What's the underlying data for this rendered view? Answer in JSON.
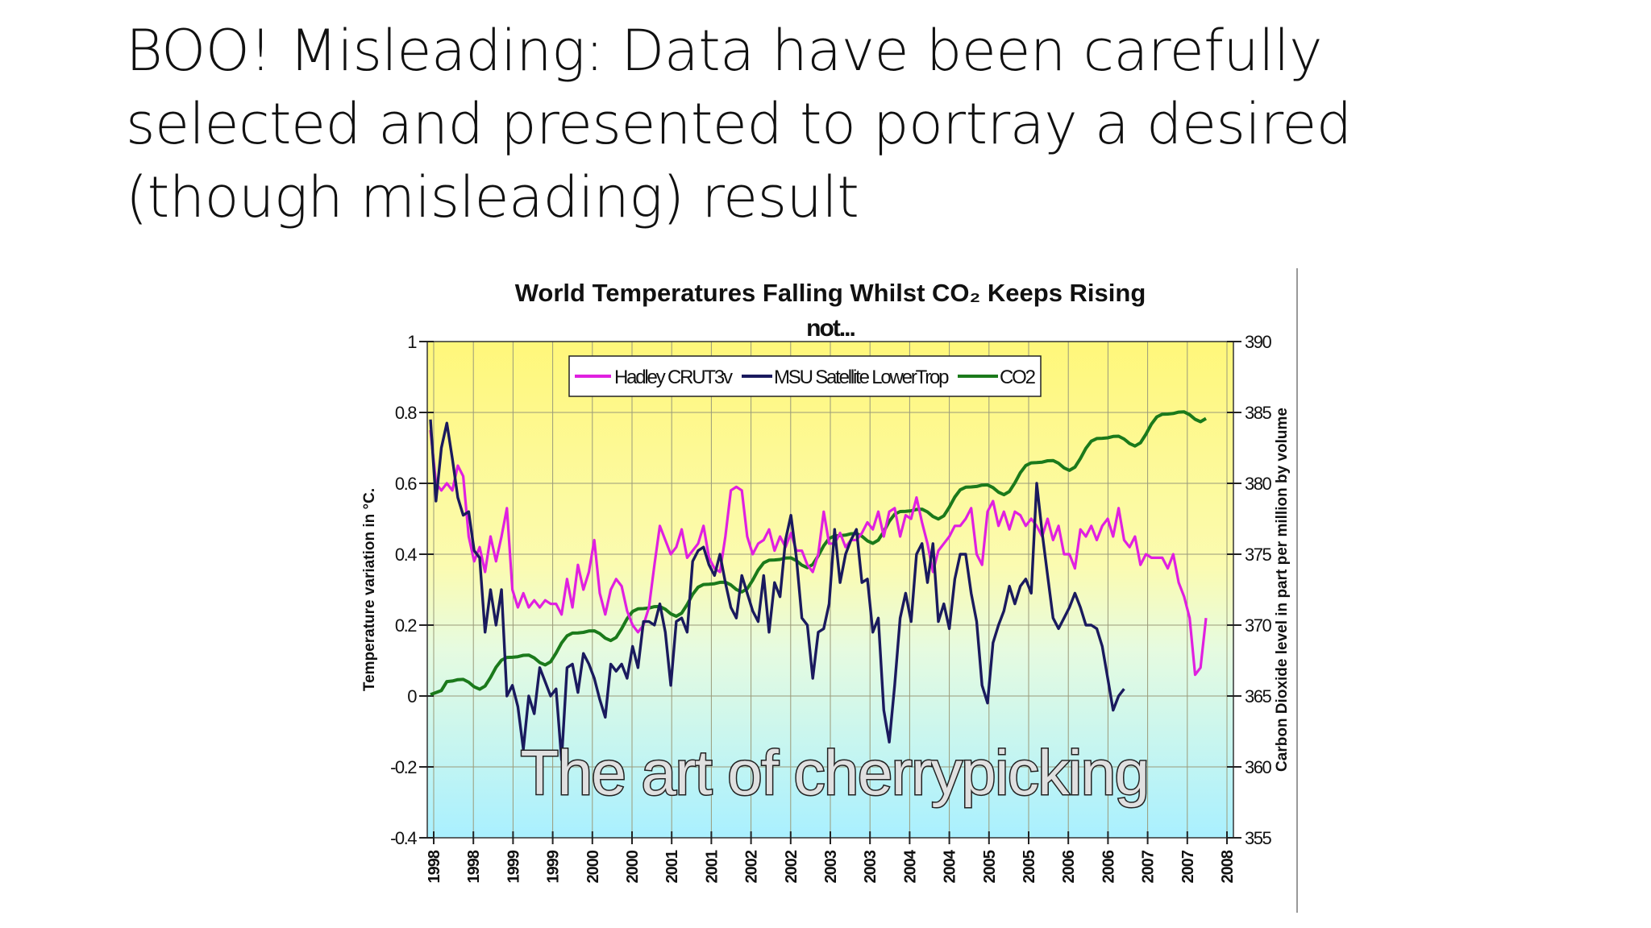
{
  "slide": {
    "title_lines": [
      "BOO! Misleading: Data have been carefully",
      "selected and presented to portray a desired",
      "(though misleading) result"
    ]
  },
  "chart_data": {
    "type": "line",
    "title": "World Temperatures Falling Whilst CO₂ Keeps Rising",
    "subtitle": "not...",
    "overlay_text": "The art of cherrypicking",
    "ylabel": "Temperature variation in °C.",
    "y2label": "Carbon Dioxide level in part per million by volume",
    "ylim": [
      -0.4,
      1
    ],
    "y2lim": [
      355,
      390
    ],
    "yticks": [
      "1",
      "0.8",
      "0.6",
      "0.4",
      "0.2",
      "0",
      "-0.2",
      "-0.4"
    ],
    "y2ticks": [
      "390",
      "385",
      "380",
      "375",
      "370",
      "365",
      "360",
      "355"
    ],
    "xticks": [
      "1998",
      "1998",
      "1999",
      "1999",
      "2000",
      "2000",
      "2001",
      "2001",
      "2002",
      "2002",
      "2003",
      "2003",
      "2004",
      "2004",
      "2005",
      "2005",
      "2006",
      "2006",
      "2007",
      "2007",
      "2008"
    ],
    "x_start": 1998.0,
    "x_end": 2008.0,
    "legend_position": "top-center",
    "colors": {
      "hadley": "#e020e0",
      "msu": "#1a1a5e",
      "co2": "#1b7a1b",
      "bg_top": "#fff77a",
      "bg_bottom": "#a9f0ff"
    },
    "series": [
      {
        "name": "Hadley CRUT3v",
        "axis": "left",
        "values": [
          0.75,
          0.6,
          0.58,
          0.6,
          0.58,
          0.65,
          0.62,
          0.45,
          0.38,
          0.42,
          0.35,
          0.45,
          0.38,
          0.45,
          0.53,
          0.3,
          0.25,
          0.29,
          0.25,
          0.27,
          0.25,
          0.27,
          0.26,
          0.26,
          0.23,
          0.33,
          0.25,
          0.37,
          0.3,
          0.35,
          0.44,
          0.29,
          0.23,
          0.3,
          0.33,
          0.31,
          0.24,
          0.2,
          0.18,
          0.2,
          0.25,
          0.37,
          0.48,
          0.44,
          0.4,
          0.42,
          0.47,
          0.39,
          0.41,
          0.43,
          0.48,
          0.39,
          0.36,
          0.35,
          0.45,
          0.58,
          0.59,
          0.58,
          0.45,
          0.4,
          0.43,
          0.44,
          0.47,
          0.41,
          0.45,
          0.42,
          0.46,
          0.41,
          0.41,
          0.37,
          0.35,
          0.4,
          0.52,
          0.43,
          0.43,
          0.46,
          0.42,
          0.44,
          0.44,
          0.46,
          0.49,
          0.47,
          0.52,
          0.45,
          0.52,
          0.53,
          0.45,
          0.51,
          0.5,
          0.56,
          0.49,
          0.43,
          0.35,
          0.41,
          0.43,
          0.45,
          0.48,
          0.48,
          0.5,
          0.53,
          0.4,
          0.37,
          0.52,
          0.55,
          0.48,
          0.52,
          0.47,
          0.52,
          0.51,
          0.48,
          0.5,
          0.48,
          0.45,
          0.5,
          0.44,
          0.48,
          0.4,
          0.4,
          0.36,
          0.47,
          0.45,
          0.48,
          0.44,
          0.48,
          0.5,
          0.45,
          0.53,
          0.44,
          0.42,
          0.45,
          0.37,
          0.4,
          0.39,
          0.39,
          0.39,
          0.36,
          0.4,
          0.32,
          0.28,
          0.22,
          0.06,
          0.08,
          0.22
        ]
      },
      {
        "name": "MSU Satellite LowerTrop",
        "axis": "left",
        "values": [
          0.78,
          0.55,
          0.7,
          0.77,
          0.67,
          0.56,
          0.51,
          0.52,
          0.41,
          0.39,
          0.18,
          0.3,
          0.2,
          0.3,
          0.0,
          0.03,
          -0.03,
          -0.15,
          0.0,
          -0.05,
          0.08,
          0.04,
          0.0,
          0.02,
          -0.18,
          0.08,
          0.09,
          0.01,
          0.12,
          0.09,
          0.05,
          -0.01,
          -0.06,
          0.09,
          0.07,
          0.09,
          0.05,
          0.14,
          0.08,
          0.21,
          0.21,
          0.2,
          0.26,
          0.18,
          0.03,
          0.21,
          0.22,
          0.18,
          0.38,
          0.41,
          0.42,
          0.37,
          0.34,
          0.4,
          0.32,
          0.25,
          0.22,
          0.34,
          0.29,
          0.24,
          0.21,
          0.34,
          0.18,
          0.32,
          0.28,
          0.44,
          0.51,
          0.39,
          0.22,
          0.2,
          0.05,
          0.18,
          0.19,
          0.26,
          0.47,
          0.32,
          0.4,
          0.44,
          0.47,
          0.32,
          0.33,
          0.18,
          0.22,
          -0.04,
          -0.13,
          0.03,
          0.22,
          0.29,
          0.21,
          0.4,
          0.43,
          0.32,
          0.43,
          0.21,
          0.26,
          0.19,
          0.33,
          0.4,
          0.4,
          0.29,
          0.21,
          0.03,
          -0.02,
          0.15,
          0.2,
          0.24,
          0.31,
          0.26,
          0.31,
          0.33,
          0.29,
          0.6,
          0.46,
          0.34,
          0.22,
          0.19,
          0.22,
          0.25,
          0.29,
          0.25,
          0.2,
          0.2,
          0.19,
          0.14,
          0.05,
          -0.04,
          0.0,
          0.02
        ]
      },
      {
        "name": "CO2",
        "axis": "right",
        "start": 365.1,
        "end": 385.4,
        "note": "monthly CO2 ppm, linear rise ~2 ppm/yr with seasonal cycle"
      }
    ]
  }
}
